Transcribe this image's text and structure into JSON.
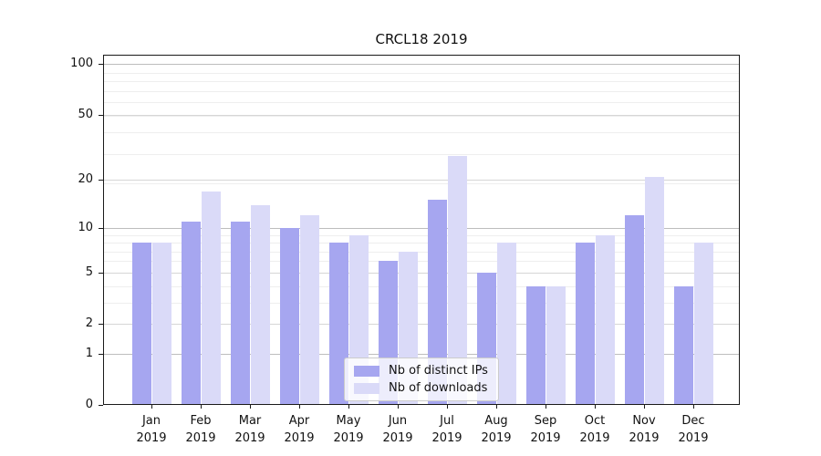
{
  "chart_data": {
    "type": "bar",
    "title": "CRCL18 2019",
    "x_tick_months": [
      "Jan",
      "Feb",
      "Mar",
      "Apr",
      "May",
      "Jun",
      "Jul",
      "Aug",
      "Sep",
      "Oct",
      "Nov",
      "Dec"
    ],
    "x_tick_year": "2019",
    "series": [
      {
        "name": "Nb of distinct IPs",
        "color": "#a6a6f0",
        "values": [
          8,
          11,
          11,
          10,
          8,
          6,
          15,
          5,
          4,
          8,
          12,
          4
        ]
      },
      {
        "name": "Nb of downloads",
        "color": "#dadaf8",
        "values": [
          8,
          17,
          14,
          12,
          9,
          7,
          28,
          8,
          4,
          9,
          21,
          8
        ]
      }
    ],
    "yscale": "log1p",
    "ylim": [
      0,
      115
    ],
    "y_tick_values": [
      0,
      1,
      2,
      5,
      10,
      20,
      50,
      100
    ],
    "y_major_gridline_values": [
      1,
      10,
      100
    ],
    "y_mid_gridline_values": [
      2,
      5,
      20,
      50
    ],
    "y_minor_gridline_values": [
      3,
      4,
      6,
      7,
      8,
      9,
      19,
      29,
      39,
      49,
      59,
      69,
      79,
      89
    ],
    "grid": true,
    "legend_position": "lower center"
  },
  "colors": {
    "major_gridline": "#bdbdbd",
    "mid_gridline": "#d6d6d6",
    "minor_gridline": "#eeeeee",
    "spine": "#1a1a1a",
    "text": "#111111",
    "legend_border": "#cccccc"
  }
}
